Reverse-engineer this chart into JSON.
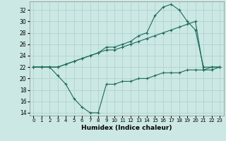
{
  "xlabel": "Humidex (Indice chaleur)",
  "xlim": [
    -0.5,
    23.5
  ],
  "ylim": [
    13.5,
    33.5
  ],
  "yticks": [
    14,
    16,
    18,
    20,
    22,
    24,
    26,
    28,
    30,
    32
  ],
  "xticks": [
    0,
    1,
    2,
    3,
    4,
    5,
    6,
    7,
    8,
    9,
    10,
    11,
    12,
    13,
    14,
    15,
    16,
    17,
    18,
    19,
    20,
    21,
    22,
    23
  ],
  "line_color": "#1a6b5a",
  "bg_color": "#cce8e4",
  "grid_color": "#aacfcc",
  "line1_x": [
    0,
    1,
    2,
    3,
    4,
    5,
    6,
    7,
    8,
    9,
    10,
    11,
    12,
    13,
    14,
    15,
    16,
    17,
    18,
    19,
    20,
    21,
    22,
    23
  ],
  "line1_y": [
    22,
    22,
    22,
    20.5,
    19,
    16.5,
    15,
    14,
    14,
    19,
    19,
    19.5,
    19.5,
    20,
    20,
    20.5,
    21,
    21,
    21,
    21.5,
    21.5,
    21.5,
    22,
    22
  ],
  "line2_x": [
    0,
    1,
    2,
    3,
    4,
    5,
    6,
    7,
    8,
    9,
    10,
    11,
    12,
    13,
    14,
    15,
    16,
    17,
    18,
    19,
    20,
    21,
    22,
    23
  ],
  "line2_y": [
    22,
    22,
    22,
    22,
    22.5,
    23,
    23.5,
    24,
    24.5,
    25,
    25,
    25.5,
    26,
    26.5,
    27,
    27.5,
    28,
    28.5,
    29,
    29.5,
    30,
    21.5,
    21.5,
    22
  ],
  "line3_x": [
    0,
    1,
    2,
    3,
    4,
    5,
    6,
    7,
    8,
    9,
    10,
    11,
    12,
    13,
    14,
    15,
    16,
    17,
    18,
    19,
    20,
    21,
    22,
    23
  ],
  "line3_y": [
    22,
    22,
    22,
    22,
    22.5,
    23,
    23.5,
    24,
    24.5,
    25.5,
    25.5,
    26,
    26.5,
    27.5,
    28,
    31,
    32.5,
    33,
    32,
    30,
    28.5,
    22,
    22,
    22
  ]
}
